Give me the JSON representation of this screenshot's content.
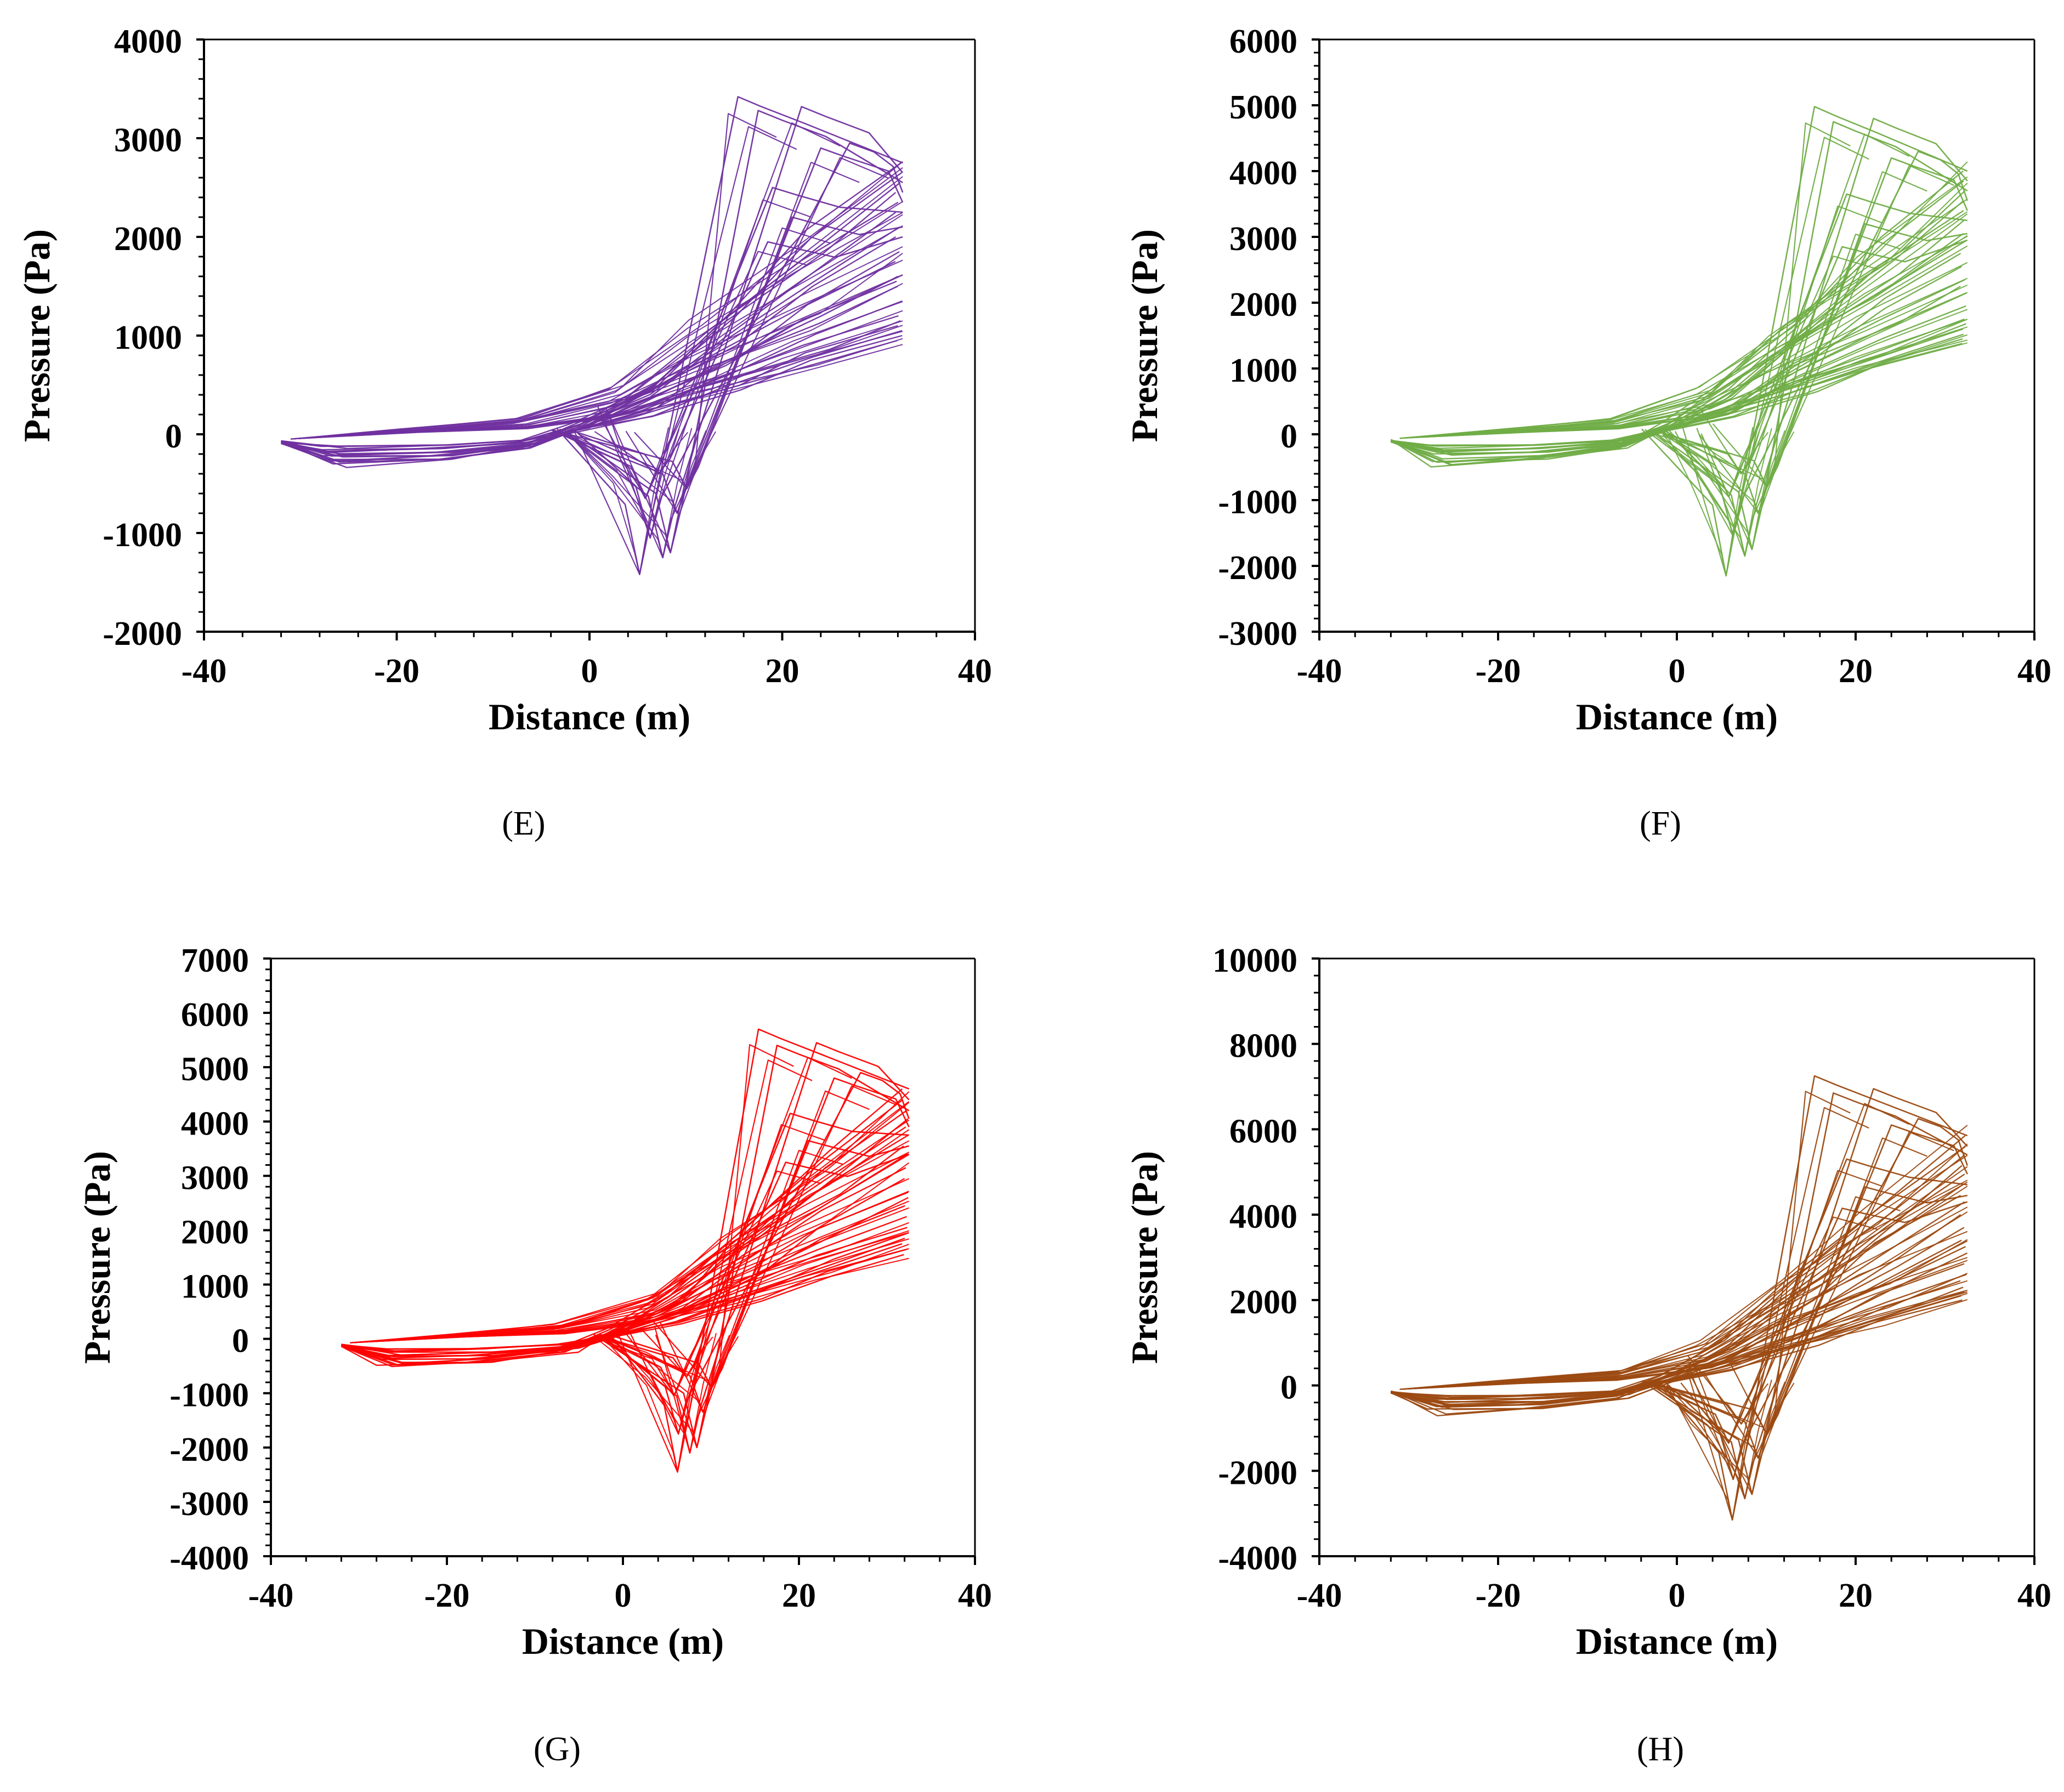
{
  "chart_data": [
    {
      "id": "E",
      "type": "line",
      "caption": "(E)",
      "xlabel": "Distance (m)",
      "ylabel": "Pressure (Pa)",
      "xlim": [
        -40,
        40
      ],
      "ylim": [
        -2000,
        4000
      ],
      "xticks": [
        -40,
        -20,
        0,
        20,
        40
      ],
      "yticks": [
        -2000,
        -1000,
        0,
        1000,
        2000,
        3000,
        4000
      ],
      "color": "#7030A0",
      "series_description": "dense bundle of pressure-distance hysteresis loops",
      "loop_params": {
        "x_start": -32,
        "x_end": 32.5,
        "start_pressure": -80,
        "end_pressures": [
          950,
          1000,
          1050,
          1100,
          1150,
          1200,
          1350,
          1500,
          1550,
          1600,
          1750,
          1850,
          2000,
          2100,
          2250,
          2350,
          2450,
          2550,
          2650,
          2750
        ],
        "peaks": [
          [
            15.4,
            3420
          ],
          [
            22,
            3320
          ],
          [
            17.5,
            3280
          ],
          [
            27,
            2950
          ],
          [
            24,
            2900
          ],
          [
            19,
            2500
          ],
          [
            21,
            2200
          ],
          [
            18.5,
            1950
          ]
        ],
        "troughs": [
          [
            5.2,
            -1420
          ],
          [
            7.6,
            -1250
          ],
          [
            8.4,
            -1200
          ],
          [
            6.3,
            -1050
          ],
          [
            9.1,
            -800
          ],
          [
            5.8,
            -650
          ],
          [
            10.1,
            -550
          ],
          [
            7.2,
            -400
          ]
        ],
        "trough_mins": [
          -280,
          -240,
          -200,
          -160,
          -120
        ]
      }
    },
    {
      "id": "F",
      "type": "line",
      "caption": "(F)",
      "xlabel": "Distance (m)",
      "ylabel": "Pressure (Pa)",
      "xlim": [
        -40,
        40
      ],
      "ylim": [
        -3000,
        6000
      ],
      "xticks": [
        -40,
        -20,
        0,
        20,
        40
      ],
      "yticks": [
        -3000,
        -2000,
        -1000,
        0,
        1000,
        2000,
        3000,
        4000,
        5000,
        6000
      ],
      "color": "#70AD47",
      "series_description": "dense bundle of pressure-distance hysteresis loops",
      "loop_params": {
        "x_start": -32,
        "x_end": 32.5,
        "start_pressure": -100,
        "end_pressures": [
          1380,
          1450,
          1520,
          1600,
          1680,
          1750,
          1950,
          2150,
          2250,
          2350,
          2550,
          2750,
          2950,
          3050,
          3250,
          3400,
          3550,
          3700,
          3850,
          4000
        ],
        "peaks": [
          [
            15.4,
            4980
          ],
          [
            22,
            4800
          ],
          [
            17.5,
            4750
          ],
          [
            27,
            4300
          ],
          [
            24,
            4200
          ],
          [
            19,
            3650
          ],
          [
            21,
            3200
          ],
          [
            18.5,
            2850
          ]
        ],
        "troughs": [
          [
            5.5,
            -2150
          ],
          [
            7.6,
            -1850
          ],
          [
            8.4,
            -1750
          ],
          [
            6.3,
            -1550
          ],
          [
            9.1,
            -1200
          ],
          [
            5.8,
            -950
          ],
          [
            10.1,
            -800
          ],
          [
            7.2,
            -600
          ]
        ],
        "trough_mins": [
          -420,
          -360,
          -300,
          -240,
          -180
        ]
      }
    },
    {
      "id": "G",
      "type": "line",
      "caption": "(G)",
      "xlabel": "Distance (m)",
      "ylabel": "Pressure (Pa)",
      "xlim": [
        -40,
        40
      ],
      "ylim": [
        -4000,
        7000
      ],
      "xticks": [
        -40,
        -20,
        0,
        20,
        40
      ],
      "yticks": [
        -4000,
        -3000,
        -2000,
        -1000,
        0,
        1000,
        2000,
        3000,
        4000,
        5000,
        6000,
        7000
      ],
      "color": "#FF0000",
      "series_description": "dense bundle of pressure-distance hysteresis loops",
      "loop_params": {
        "x_start": -32,
        "x_end": 32.5,
        "start_pressure": -120,
        "end_pressures": [
          1550,
          1650,
          1750,
          1850,
          1950,
          2050,
          2250,
          2450,
          2600,
          2700,
          2950,
          3150,
          3400,
          3550,
          3750,
          3900,
          4050,
          4200,
          4400,
          4600
        ],
        "peaks": [
          [
            15.4,
            5700
          ],
          [
            22,
            5450
          ],
          [
            17.5,
            5400
          ],
          [
            27,
            4900
          ],
          [
            24,
            4800
          ],
          [
            19,
            4150
          ],
          [
            21,
            3650
          ],
          [
            18.5,
            3250
          ]
        ],
        "troughs": [
          [
            6.2,
            -2450
          ],
          [
            7.6,
            -2100
          ],
          [
            8.4,
            -2000
          ],
          [
            6.3,
            -1750
          ],
          [
            9.1,
            -1350
          ],
          [
            5.8,
            -1050
          ],
          [
            10.1,
            -900
          ],
          [
            7.2,
            -700
          ]
        ],
        "trough_mins": [
          -480,
          -410,
          -340,
          -270,
          -200
        ]
      }
    },
    {
      "id": "H",
      "type": "line",
      "caption": "(H)",
      "xlabel": "Distance (m)",
      "ylabel": "Pressure (Pa)",
      "xlim": [
        -40,
        40
      ],
      "ylim": [
        -4000,
        10000
      ],
      "xticks": [
        -40,
        -20,
        0,
        20,
        40
      ],
      "yticks": [
        -4000,
        -2000,
        0,
        2000,
        4000,
        6000,
        8000,
        10000
      ],
      "color": "#9C4A12",
      "series_description": "dense bundle of pressure-distance hysteresis loops",
      "loop_params": {
        "x_start": -32,
        "x_end": 32.5,
        "start_pressure": -150,
        "end_pressures": [
          2000,
          2100,
          2200,
          2300,
          2450,
          2600,
          2850,
          3100,
          3250,
          3400,
          3700,
          4000,
          4300,
          4450,
          4700,
          4950,
          5150,
          5400,
          5600,
          5850
        ],
        "peaks": [
          [
            15.4,
            7250
          ],
          [
            22,
            6950
          ],
          [
            17.5,
            6850
          ],
          [
            27,
            6250
          ],
          [
            24,
            6100
          ],
          [
            19,
            5300
          ],
          [
            21,
            4650
          ],
          [
            18.5,
            4150
          ]
        ],
        "troughs": [
          [
            6.2,
            -3150
          ],
          [
            7.6,
            -2650
          ],
          [
            8.4,
            -2550
          ],
          [
            6.3,
            -2200
          ],
          [
            9.1,
            -1700
          ],
          [
            5.8,
            -1350
          ],
          [
            10.1,
            -1150
          ],
          [
            7.2,
            -900
          ]
        ],
        "trough_mins": [
          -600,
          -500,
          -420,
          -340,
          -260
        ]
      }
    }
  ]
}
